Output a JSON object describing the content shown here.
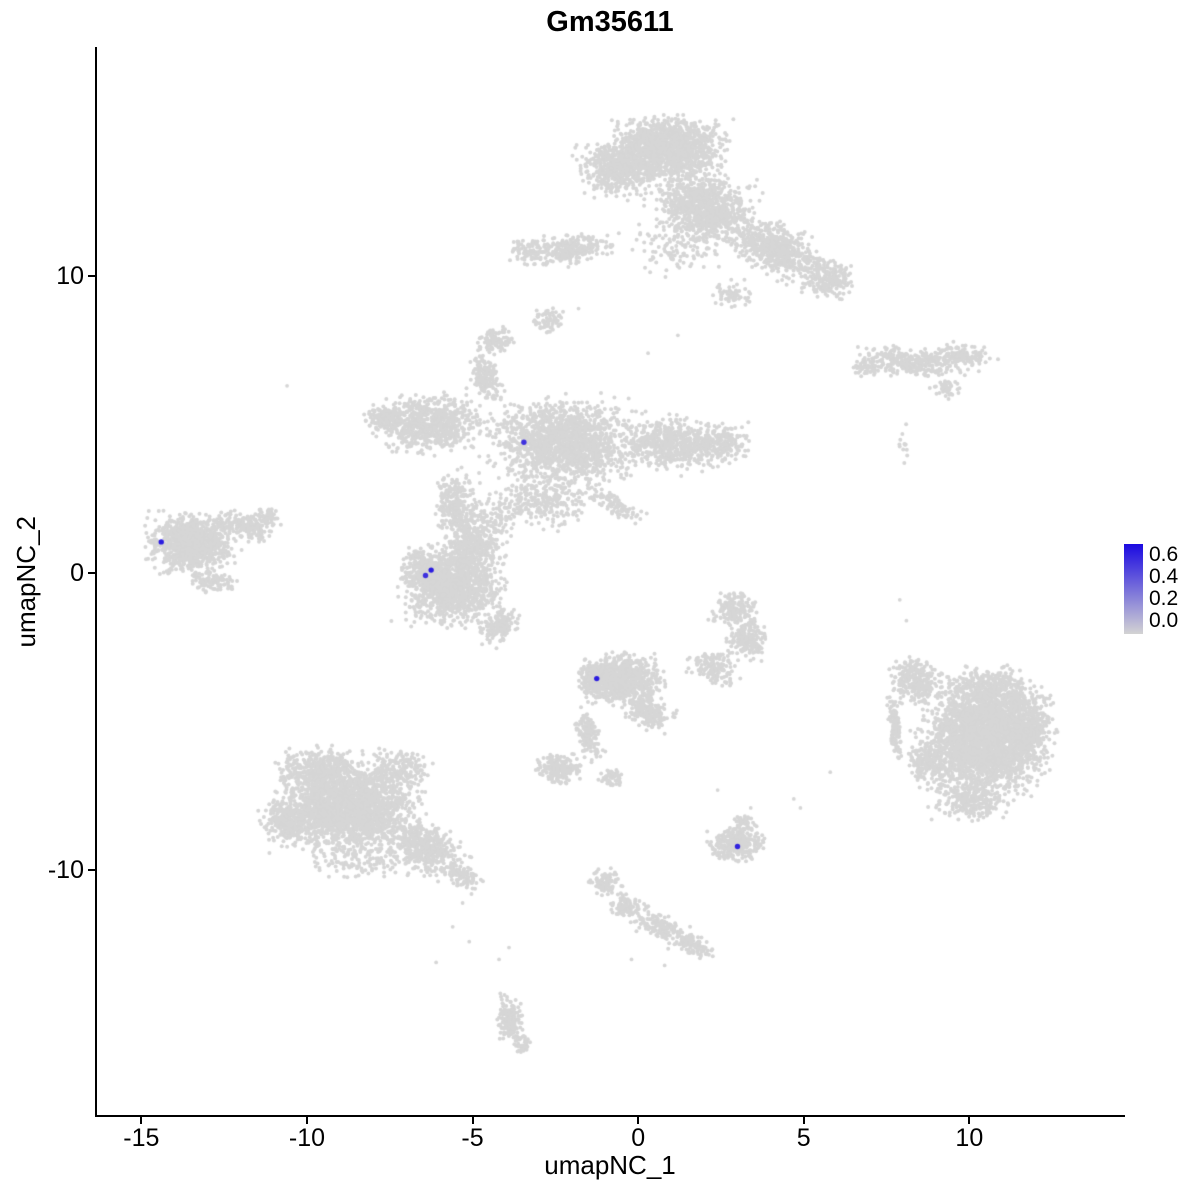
{
  "chart_data": {
    "type": "scatter",
    "title": "Gm35611",
    "xlabel": "umapNC_1",
    "ylabel": "umapNC_2",
    "xlim": [
      -16.4,
      14.7
    ],
    "ylim": [
      -18.3,
      17.7
    ],
    "x_tick_labels": [
      "-15",
      "-10",
      "-5",
      "0",
      "5",
      "10"
    ],
    "x_tick_values": [
      -15,
      -10,
      -5,
      0,
      5,
      10
    ],
    "y_tick_labels": [
      "-10",
      "0",
      "10"
    ],
    "y_tick_values": [
      -10,
      0,
      10
    ],
    "grid": false,
    "background": "#FFFFFF",
    "point_color": "#D6D6D6",
    "axis_color": "#000000",
    "legend": {
      "position": "right",
      "tick_labels": [
        "0.6",
        "0.4",
        "0.2",
        "0.0"
      ],
      "tick_values": [
        0.6,
        0.4,
        0.2,
        0.0
      ],
      "low_color": "#D3D3D3",
      "high_color": "#1B0AE1",
      "max_value": 0.68
    },
    "highlight_points": [
      {
        "x": -14.4,
        "y": 1.05,
        "value": 0.62
      },
      {
        "x": -6.25,
        "y": 0.1,
        "value": 0.62
      },
      {
        "x": -6.42,
        "y": -0.08,
        "value": 0.55
      },
      {
        "x": -3.45,
        "y": 4.4,
        "value": 0.55
      },
      {
        "x": -1.25,
        "y": -3.55,
        "value": 0.62
      },
      {
        "x": 3.0,
        "y": -9.2,
        "value": 0.6
      }
    ],
    "clusters_format": [
      "cx",
      "cy",
      "sx",
      "sy",
      "rot_deg",
      "n"
    ],
    "clusters": [
      [
        0.9,
        14.3,
        1.15,
        0.75,
        0,
        1400
      ],
      [
        -0.6,
        13.6,
        0.8,
        0.65,
        0,
        550
      ],
      [
        2.0,
        12.3,
        1.1,
        0.85,
        -20,
        950
      ],
      [
        4.1,
        10.9,
        1.05,
        0.55,
        -28,
        650
      ],
      [
        5.7,
        9.9,
        0.6,
        0.45,
        -20,
        220
      ],
      [
        -2.0,
        10.9,
        0.9,
        0.38,
        5,
        260
      ],
      [
        -3.3,
        10.8,
        0.4,
        0.28,
        0,
        80
      ],
      [
        1.4,
        11.0,
        1.1,
        0.65,
        0,
        140
      ],
      [
        2.8,
        9.4,
        0.45,
        0.35,
        0,
        60
      ],
      [
        -2.7,
        8.5,
        0.35,
        0.3,
        0,
        70
      ],
      [
        8.2,
        7.1,
        1.1,
        0.35,
        -6,
        330
      ],
      [
        9.9,
        7.35,
        0.6,
        0.3,
        -12,
        120
      ],
      [
        6.9,
        6.9,
        0.3,
        0.25,
        0,
        50
      ],
      [
        9.3,
        6.2,
        0.33,
        0.22,
        0,
        45
      ],
      [
        8.0,
        4.2,
        0.12,
        0.55,
        0,
        12
      ],
      [
        -2.2,
        4.4,
        1.6,
        1.0,
        0,
        1600
      ],
      [
        1.0,
        4.3,
        1.0,
        0.65,
        0,
        500
      ],
      [
        2.5,
        4.35,
        0.7,
        0.5,
        0,
        200
      ],
      [
        -6.3,
        5.0,
        1.1,
        0.7,
        5,
        700
      ],
      [
        -7.7,
        5.2,
        0.45,
        0.35,
        10,
        110
      ],
      [
        -4.6,
        6.6,
        0.35,
        0.6,
        10,
        180
      ],
      [
        -4.3,
        7.8,
        0.4,
        0.35,
        0,
        110
      ],
      [
        -5.5,
        2.2,
        0.45,
        0.9,
        10,
        280
      ],
      [
        -3.0,
        2.4,
        1.2,
        0.6,
        0,
        300
      ],
      [
        -0.7,
        2.3,
        0.7,
        0.25,
        -30,
        100
      ],
      [
        -5.6,
        -0.4,
        1.05,
        0.95,
        0,
        1300
      ],
      [
        -6.5,
        0.1,
        0.45,
        0.4,
        0,
        200
      ],
      [
        -5.0,
        0.9,
        0.7,
        0.45,
        0,
        250
      ],
      [
        -4.2,
        -1.8,
        0.5,
        0.35,
        35,
        150
      ],
      [
        -4.6,
        1.7,
        0.7,
        0.45,
        0,
        110
      ],
      [
        -13.5,
        1.0,
        0.95,
        0.7,
        0,
        1000
      ],
      [
        -11.9,
        1.6,
        0.7,
        0.3,
        -20,
        180
      ],
      [
        -11.2,
        1.9,
        0.33,
        0.2,
        -20,
        55
      ],
      [
        -12.8,
        -0.3,
        0.5,
        0.28,
        0,
        90
      ],
      [
        2.9,
        -1.2,
        0.5,
        0.4,
        0,
        170
      ],
      [
        3.3,
        -2.2,
        0.45,
        0.5,
        0,
        170
      ],
      [
        2.3,
        -3.2,
        0.55,
        0.4,
        -20,
        150
      ],
      [
        -0.5,
        -3.6,
        0.85,
        0.6,
        0,
        900
      ],
      [
        0.3,
        -4.7,
        0.5,
        0.38,
        -30,
        190
      ],
      [
        -1.35,
        -3.5,
        0.3,
        0.4,
        0,
        140
      ],
      [
        -1.5,
        -5.4,
        0.25,
        0.6,
        15,
        150
      ],
      [
        -2.4,
        -6.6,
        0.5,
        0.35,
        0,
        200
      ],
      [
        -0.85,
        -6.9,
        0.25,
        0.26,
        0,
        55
      ],
      [
        -8.8,
        -7.9,
        1.5,
        1.05,
        0,
        2200
      ],
      [
        -9.6,
        -6.6,
        0.9,
        0.5,
        0,
        380
      ],
      [
        -10.6,
        -8.3,
        0.6,
        0.5,
        0,
        240
      ],
      [
        -6.5,
        -9.2,
        0.85,
        0.55,
        -35,
        430
      ],
      [
        -5.3,
        -10.2,
        0.45,
        0.3,
        -30,
        100
      ],
      [
        -8.3,
        -9.6,
        1.2,
        0.45,
        0,
        140
      ],
      [
        -7.2,
        -6.6,
        0.7,
        0.45,
        0,
        180
      ],
      [
        -1.0,
        -10.4,
        0.35,
        0.28,
        0,
        90
      ],
      [
        -0.3,
        -11.2,
        0.4,
        0.3,
        -30,
        110
      ],
      [
        0.7,
        -11.9,
        0.55,
        0.28,
        -25,
        130
      ],
      [
        1.6,
        -12.5,
        0.5,
        0.28,
        -20,
        110
      ],
      [
        2.95,
        -9.1,
        0.58,
        0.42,
        0,
        300
      ],
      [
        3.2,
        -8.4,
        0.25,
        0.2,
        0,
        45
      ],
      [
        10.4,
        -5.6,
        1.3,
        1.3,
        0,
        2800
      ],
      [
        11.8,
        -5.2,
        0.55,
        0.9,
        0,
        350
      ],
      [
        10.6,
        -3.9,
        0.9,
        0.55,
        0,
        380
      ],
      [
        8.4,
        -3.6,
        0.5,
        0.55,
        20,
        280
      ],
      [
        7.75,
        -5.2,
        0.12,
        0.85,
        5,
        120
      ],
      [
        10.0,
        -7.7,
        0.8,
        0.45,
        0,
        240
      ],
      [
        8.7,
        -6.3,
        0.4,
        0.5,
        0,
        140
      ],
      [
        -3.9,
        -15.0,
        0.28,
        0.6,
        5,
        150
      ],
      [
        -3.5,
        -15.9,
        0.18,
        0.25,
        0,
        35
      ]
    ],
    "sparse_points": [
      [
        -10.6,
        6.3
      ],
      [
        1.2,
        8.0
      ],
      [
        -1.8,
        8.9
      ],
      [
        0.3,
        7.4
      ],
      [
        4.7,
        -7.6
      ],
      [
        4.9,
        -7.9
      ],
      [
        2.4,
        -7.3
      ],
      [
        3.4,
        -7.9
      ],
      [
        0.8,
        -13.2
      ],
      [
        -0.2,
        -13.0
      ],
      [
        -5.3,
        -11.1
      ],
      [
        -5.6,
        -11.9
      ],
      [
        -5.1,
        -12.4
      ],
      [
        -4.2,
        -13.0
      ],
      [
        -3.9,
        -12.6
      ],
      [
        -6.1,
        -13.1
      ],
      [
        5.8,
        -6.7
      ],
      [
        7.9,
        -0.9
      ],
      [
        8.1,
        -1.6
      ]
    ]
  }
}
